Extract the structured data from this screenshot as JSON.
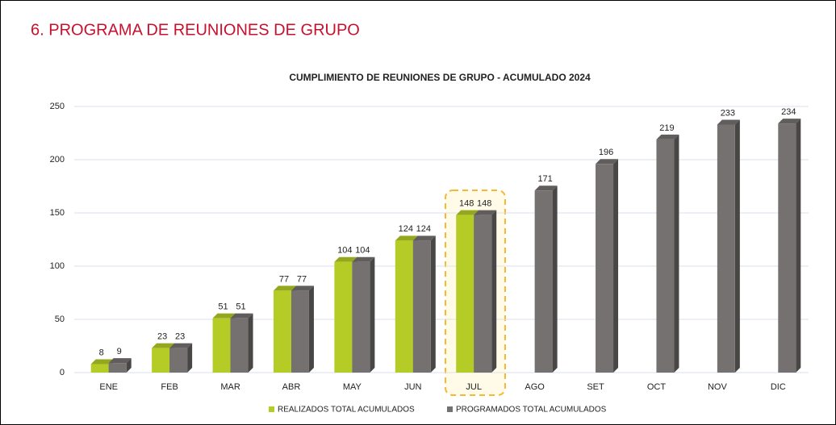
{
  "heading": "6. PROGRAMA DE REUNIONES DE GRUPO",
  "chart_data": {
    "type": "bar3d",
    "title": "CUMPLIMIENTO DE REUNIONES DE GRUPO - ACUMULADO 2024",
    "categories": [
      "ENE",
      "FEB",
      "MAR",
      "ABR",
      "MAY",
      "JUN",
      "JUL",
      "AGO",
      "SET",
      "OCT",
      "NOV",
      "DIC"
    ],
    "series": [
      {
        "name": "REALIZADOS TOTAL ACUMULADOS",
        "color": "#b5cc26",
        "values": [
          8,
          23,
          51,
          77,
          104,
          124,
          148,
          null,
          null,
          null,
          null,
          null
        ]
      },
      {
        "name": "PROGRAMADOS TOTAL ACUMULADOS",
        "color": "#767171",
        "values": [
          9,
          23,
          51,
          77,
          104,
          124,
          148,
          171,
          196,
          219,
          233,
          234
        ]
      }
    ],
    "ylim": [
      0,
      250
    ],
    "yticks": [
      0,
      50,
      100,
      150,
      200,
      250
    ],
    "grid": true,
    "legend": "bottom"
  }
}
